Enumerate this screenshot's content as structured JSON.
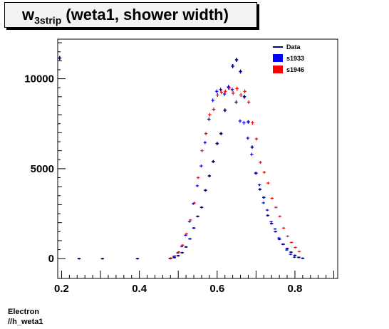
{
  "title": {
    "main": "w",
    "sub": "3strip",
    "rest": " (weta1, shower width)"
  },
  "footer": {
    "line1": "Electron",
    "line2": "//h_weta1"
  },
  "chart_data": {
    "type": "scatter",
    "xlim": [
      0.19,
      0.91
    ],
    "ylim": [
      -1100,
      12200
    ],
    "x_ticks": [
      0.2,
      0.4,
      0.6,
      0.8
    ],
    "x_tick_labels": [
      "0.2",
      "0.4",
      "0.6",
      "0.8"
    ],
    "y_ticks": [
      0,
      5000,
      10000
    ],
    "y_tick_labels": [
      "0",
      "5000",
      "10000"
    ],
    "legend_position": "top-right",
    "legend": [
      {
        "label": "Data",
        "style": "line",
        "color": "#000080"
      },
      {
        "label": "s1933",
        "style": "box",
        "color": "#0000ff"
      },
      {
        "label": "s1946",
        "style": "box",
        "color": "#ff0000"
      }
    ],
    "series": [
      {
        "name": "Data",
        "color": "#000080",
        "x": [
          0.195,
          0.245,
          0.305,
          0.395,
          0.48,
          0.49,
          0.5,
          0.51,
          0.52,
          0.53,
          0.54,
          0.55,
          0.56,
          0.57,
          0.58,
          0.59,
          0.6,
          0.61,
          0.62,
          0.63,
          0.64,
          0.65,
          0.66,
          0.67,
          0.68,
          0.69,
          0.7,
          0.71,
          0.72,
          0.73,
          0.74,
          0.75,
          0.76,
          0.77,
          0.78,
          0.79,
          0.8,
          0.81,
          0.82
        ],
        "y": [
          11150,
          0,
          0,
          0,
          10,
          60,
          160,
          330,
          650,
          1100,
          1700,
          2350,
          2850,
          3800,
          4600,
          5400,
          6400,
          6950,
          8250,
          9500,
          10700,
          11050,
          10400,
          9000,
          7600,
          6200,
          4750,
          3850,
          3400,
          2400,
          1950,
          1500,
          1080,
          800,
          560,
          360,
          180,
          70,
          20
        ]
      },
      {
        "name": "s1933",
        "color": "#0000ff",
        "x": [
          0.48,
          0.49,
          0.5,
          0.51,
          0.52,
          0.53,
          0.54,
          0.55,
          0.56,
          0.57,
          0.58,
          0.59,
          0.6,
          0.61,
          0.62,
          0.63,
          0.64,
          0.65,
          0.66,
          0.67,
          0.68,
          0.69,
          0.7,
          0.71,
          0.72,
          0.73,
          0.74,
          0.75,
          0.76,
          0.77,
          0.78,
          0.79,
          0.8
        ],
        "y": [
          20,
          120,
          320,
          680,
          1300,
          2050,
          3050,
          4050,
          5150,
          6450,
          7750,
          8800,
          9300,
          9400,
          9150,
          9550,
          9400,
          8700,
          7650,
          7550,
          6700,
          5800,
          4750,
          4100,
          3100,
          2700,
          2050,
          1650,
          1150,
          800,
          480,
          240,
          80
        ]
      },
      {
        "name": "s1946",
        "color": "#ff0000",
        "x": [
          0.48,
          0.49,
          0.5,
          0.51,
          0.52,
          0.53,
          0.54,
          0.55,
          0.56,
          0.57,
          0.58,
          0.59,
          0.6,
          0.61,
          0.62,
          0.63,
          0.64,
          0.65,
          0.66,
          0.67,
          0.68,
          0.69,
          0.7,
          0.71,
          0.72,
          0.73,
          0.74,
          0.75,
          0.76,
          0.77,
          0.78,
          0.79,
          0.8,
          0.81
        ],
        "y": [
          30,
          150,
          370,
          750,
          1380,
          2150,
          3100,
          4500,
          6000,
          6950,
          8000,
          8300,
          9100,
          9250,
          9300,
          9500,
          9200,
          9450,
          9100,
          9300,
          8700,
          7550,
          6650,
          5350,
          4800,
          4200,
          3350,
          2850,
          2350,
          1700,
          1250,
          900,
          620,
          400
        ]
      }
    ]
  }
}
